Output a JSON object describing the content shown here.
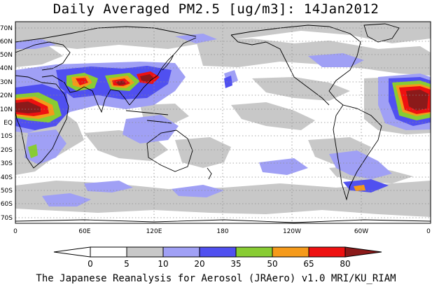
{
  "title": "Daily Averaged PM2.5 [ug/m3]: 14Jan2012",
  "credit": "The Japanese Reanalysis for Aerosol (JRAero) v1.0 MRI/KU_RIAM",
  "lat_labels": [
    "70N",
    "60N",
    "50N",
    "40N",
    "30N",
    "20N",
    "10N",
    "EQ",
    "10S",
    "20S",
    "30S",
    "40S",
    "50S",
    "60S",
    "70S"
  ],
  "lon_labels": [
    "0",
    "60E",
    "120E",
    "180",
    "120W",
    "60W",
    "0"
  ],
  "colorbar": {
    "labels": [
      "0",
      "5",
      "10",
      "20",
      "35",
      "50",
      "65",
      "80"
    ],
    "colors": [
      "#ffffff",
      "#ffffff",
      "#c8c8c8",
      "#a0a0f5",
      "#5050f0",
      "#88cc33",
      "#f59a1a",
      "#ee1111",
      "#8b1a1a"
    ]
  },
  "map": {
    "type": "filled-contour",
    "quantity": "PM2.5",
    "units": "ug/m3",
    "lon_range": [
      0,
      360
    ],
    "lat_range": [
      -75,
      75
    ],
    "grid": true
  }
}
